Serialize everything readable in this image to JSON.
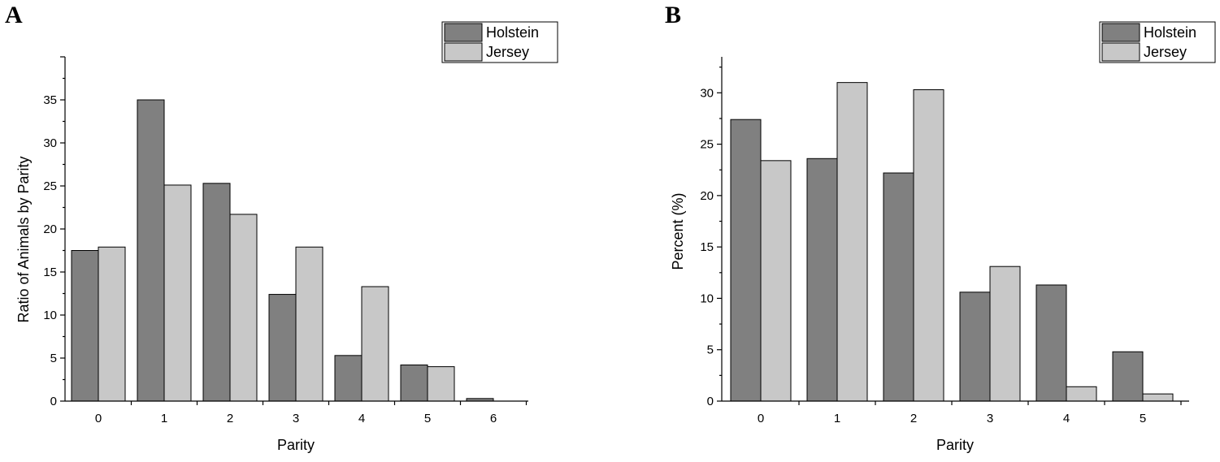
{
  "chart_data": [
    {
      "panel": "A",
      "type": "bar",
      "xlabel": "Parity",
      "ylabel": "Ratio of Animals by Parity",
      "categories": [
        "0",
        "1",
        "2",
        "3",
        "4",
        "5",
        "6"
      ],
      "ylim": [
        0,
        40
      ],
      "yticks": [
        0,
        5,
        10,
        15,
        20,
        25,
        30,
        35
      ],
      "legend_position": "top-right",
      "series": [
        {
          "name": "Holstein",
          "color": "#808080",
          "values": [
            17.5,
            35.0,
            25.3,
            12.4,
            5.3,
            4.2,
            0.3
          ]
        },
        {
          "name": "Jersey",
          "color": "#c8c8c8",
          "values": [
            17.9,
            25.1,
            21.7,
            17.9,
            13.3,
            4.0,
            0
          ]
        }
      ]
    },
    {
      "panel": "B",
      "type": "bar",
      "xlabel": "Parity",
      "ylabel": "Percent (%)",
      "categories": [
        "0",
        "1",
        "2",
        "3",
        "4",
        "5"
      ],
      "ylim": [
        0,
        33.5
      ],
      "yticks": [
        0,
        5,
        10,
        15,
        20,
        25,
        30
      ],
      "legend_position": "top-right",
      "series": [
        {
          "name": "Holstein",
          "color": "#808080",
          "values": [
            27.4,
            23.6,
            22.2,
            10.6,
            11.3,
            4.8
          ]
        },
        {
          "name": "Jersey",
          "color": "#c8c8c8",
          "values": [
            23.4,
            31.0,
            30.3,
            13.1,
            1.4,
            0.7
          ]
        }
      ]
    }
  ]
}
